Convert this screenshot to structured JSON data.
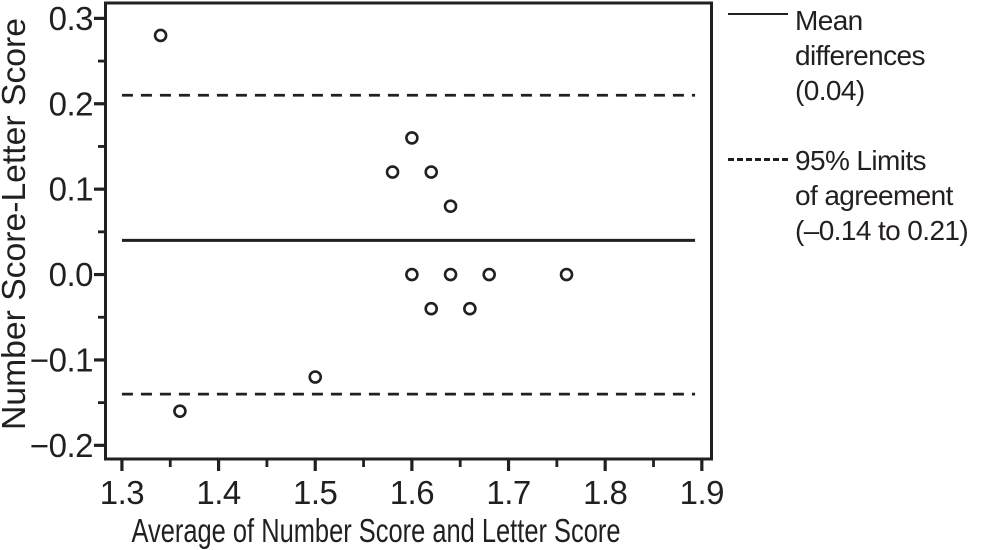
{
  "figure": {
    "background_color": "#ffffff",
    "ink_color": "#231f20"
  },
  "chart_data": {
    "type": "scatter",
    "title": "",
    "xlabel": "Average of Number Score and Letter Score",
    "ylabel": "Number Score-Letter Score",
    "xlim": [
      1.283,
      1.91
    ],
    "ylim": [
      -0.216,
      0.318
    ],
    "x_major_ticks": [
      1.3,
      1.4,
      1.5,
      1.6,
      1.7,
      1.8,
      1.9
    ],
    "x_tick_labels": [
      "1.3",
      "1.4",
      "1.5",
      "1.6",
      "1.7",
      "1.8",
      "1.9"
    ],
    "x_minor_ticks": [
      1.35,
      1.45,
      1.55,
      1.65,
      1.75,
      1.85
    ],
    "y_major_ticks": [
      0.3,
      0.2,
      0.1,
      0.0,
      -0.1,
      -0.2
    ],
    "y_tick_labels": [
      "0.3",
      "0.2",
      "0.1",
      "0.0",
      "−0.1",
      "−0.2"
    ],
    "y_minor_ticks": [
      0.25,
      0.15,
      0.05,
      -0.05,
      -0.15
    ],
    "grid": false,
    "marker": "open-circle",
    "points": [
      [
        1.34,
        0.28
      ],
      [
        1.58,
        0.12
      ],
      [
        1.6,
        0.16
      ],
      [
        1.62,
        0.12
      ],
      [
        1.64,
        0.08
      ],
      [
        1.6,
        0.0
      ],
      [
        1.64,
        0.0
      ],
      [
        1.68,
        0.0
      ],
      [
        1.76,
        0.0
      ],
      [
        1.62,
        -0.04
      ],
      [
        1.66,
        -0.04
      ],
      [
        1.5,
        -0.12
      ],
      [
        1.36,
        -0.16
      ]
    ],
    "reference_lines": [
      {
        "name": "mean",
        "value": 0.04,
        "style": "solid"
      },
      {
        "name": "upper-limit",
        "value": 0.21,
        "style": "dashed"
      },
      {
        "name": "lower-limit",
        "value": -0.14,
        "style": "dashed"
      }
    ],
    "reference_line_x_span": [
      1.3,
      1.893
    ],
    "legend_position": "right"
  },
  "legend": {
    "entries": [
      {
        "swatch": "solid-line",
        "lines": [
          "Mean",
          "differences",
          "(0.04)"
        ]
      },
      {
        "swatch": "dashed-line",
        "lines": [
          "95% Limits",
          "of agreement",
          "(–0.14 to 0.21)"
        ]
      }
    ]
  }
}
